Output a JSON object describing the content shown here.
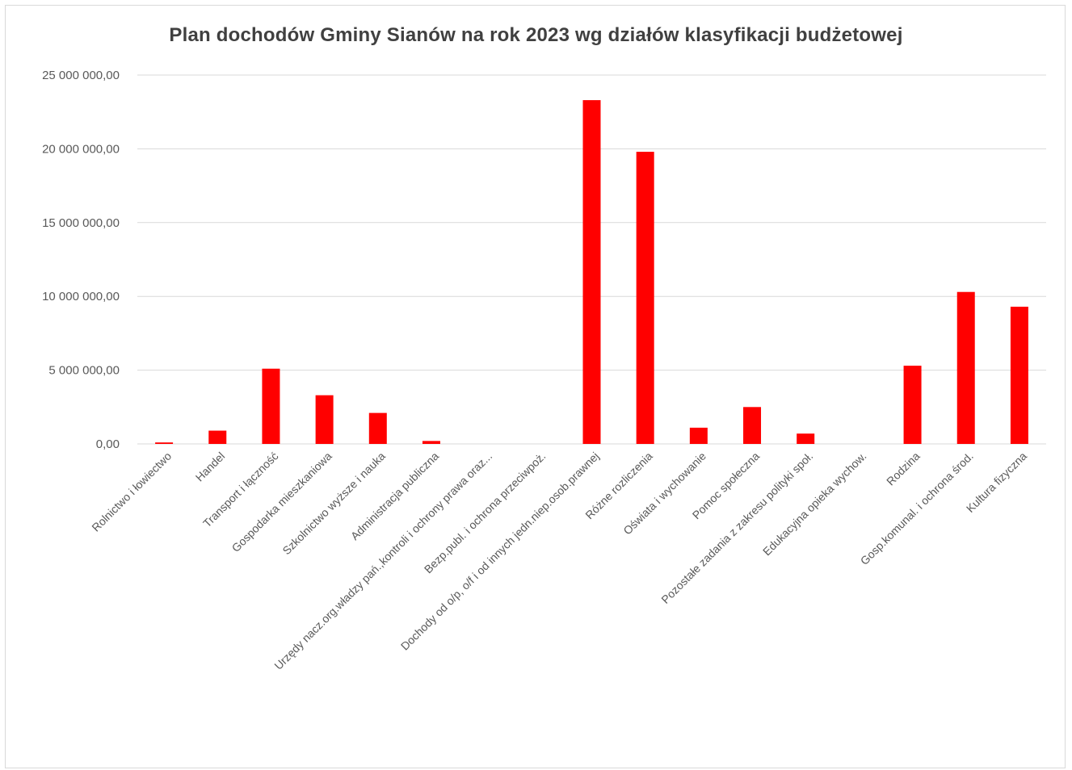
{
  "chart_data": {
    "type": "bar",
    "title": "Plan dochodów Gminy Sianów na rok 2023 wg działów klasyfikacji  budżetowej",
    "xlabel": "",
    "ylabel": "",
    "ylim": [
      0,
      25000000
    ],
    "yticks": [
      0,
      5000000,
      10000000,
      15000000,
      20000000,
      25000000
    ],
    "ytick_labels": [
      "0,00",
      "5 000 000,00",
      "10 000 000,00",
      "15 000 000,00",
      "20 000 000,00",
      "25 000 000,00"
    ],
    "grid": true,
    "legend": "none",
    "bar_color": "#ff0000",
    "categories": [
      "Rolnictwo i łowiectwo",
      "Handel",
      "Transport i łączność",
      "Gospodarka mieszkaniowa",
      "Szkolnictwo wyższe i nauka",
      "Administracja publiczna",
      "Urzędy nacz.org.władzy pań.,kontroli i ochrony prawa oraz...",
      "Bezp.publ. i ochrona przeciwpoż.",
      "Dochody od o/p, o/f i od innych jedn.niep.osob.prawnej",
      "Różne rozliczenia",
      "Oświata i wychowanie",
      "Pomoc społeczna",
      "Pozostałe zadania z zakresu polityki społ.",
      "Edukacyjna opieka wychow.",
      "Rodzina",
      "Gosp.komunal. i ochrona środ.",
      "Kultura fizyczna"
    ],
    "values": [
      100000,
      900000,
      5100000,
      3300000,
      2100000,
      200000,
      0,
      0,
      23300000,
      19800000,
      1100000,
      2500000,
      700000,
      0,
      5300000,
      10300000,
      9300000
    ]
  }
}
